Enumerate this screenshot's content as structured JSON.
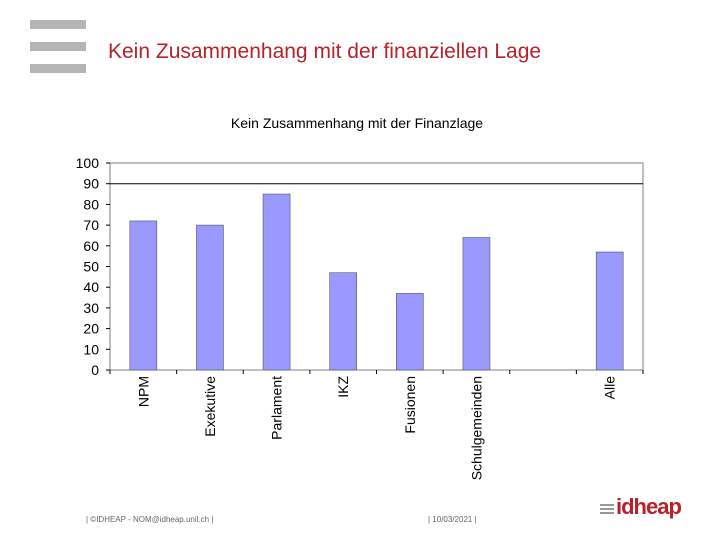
{
  "page": {
    "title": "Kein Zusammenhang mit der finanziellen Lage",
    "accent_color": "#b8212b"
  },
  "chart_data": {
    "type": "bar",
    "title": "Kein Zusammenhang mit der Finanzlage",
    "xlabel": "",
    "ylabel": "",
    "categories": [
      "NPM",
      "Exekutive",
      "Parlament",
      "IKZ",
      "Fusionen",
      "Schulgemeinden",
      "",
      "Alle"
    ],
    "values": [
      72,
      70,
      85,
      47,
      37,
      64,
      null,
      57
    ],
    "ylim": [
      0,
      100
    ],
    "yticks": [
      0,
      10,
      20,
      30,
      40,
      50,
      60,
      70,
      80,
      90,
      100
    ],
    "reference_line": 90,
    "bar_color": "#9999ff",
    "grid": false,
    "legend": "none"
  },
  "footer": {
    "left": "| ©IDHEAP - NOM@idheap.unil.ch |",
    "right": "| 10/03/2021 |"
  },
  "logo": {
    "icon": "idheap-logo",
    "text": "idheap"
  }
}
